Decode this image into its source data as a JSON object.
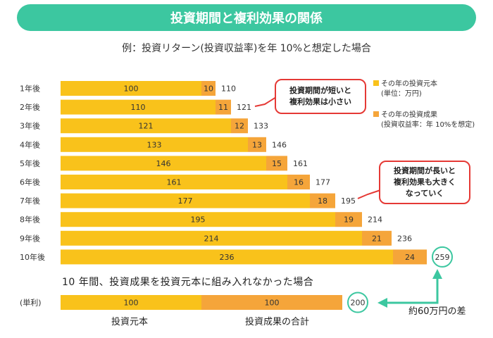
{
  "header": {
    "title": "投資期間と複利効果の関係",
    "subtitle": "例：投資リターン(投資収益率)を年 10%と想定した場合"
  },
  "legend": {
    "principal": "その年の投資元本",
    "principal_note": "(単位：万円)",
    "gain": "その年の投資成果",
    "gain_note": "(投資収益率：年 10%を想定)"
  },
  "callouts": {
    "short_line1": "投資期間が短いと",
    "short_line2": "複利効果は小さい",
    "long_line1": "投資期間が長いと",
    "long_line2": "複利効果も大きく",
    "long_line3": "なっていく"
  },
  "bottom": {
    "title": "10 年間、投資成果を投資元本に組み入れなかった場合",
    "row_label": "(単利)",
    "principal_label": "投資元本",
    "gains_label": "投資成果の合計",
    "diff_label": "約60万円の差"
  },
  "colors": {
    "banner": "#3cc7a0",
    "principal": "#f9c21b",
    "gain": "#f5a53a",
    "teal": "#3cc7a0",
    "callout_border": "#e53935"
  },
  "chart_data": [
    {
      "type": "bar",
      "stacked": true,
      "orientation": "horizontal",
      "categories": [
        "1年後",
        "2年後",
        "3年後",
        "4年後",
        "5年後",
        "6年後",
        "7年後",
        "8年後",
        "9年後",
        "10年後"
      ],
      "series": [
        {
          "name": "その年の投資元本",
          "values": [
            100,
            110,
            121,
            133,
            146,
            161,
            177,
            195,
            214,
            236
          ]
        },
        {
          "name": "その年の投資成果",
          "values": [
            10,
            11,
            12,
            13,
            15,
            16,
            18,
            19,
            21,
            24
          ]
        }
      ],
      "totals": [
        "110",
        "121",
        "133",
        "146",
        "161",
        "177",
        "195",
        "214",
        "236",
        "259"
      ],
      "xlim": [
        0,
        259
      ]
    },
    {
      "type": "bar",
      "stacked": true,
      "orientation": "horizontal",
      "categories": [
        "(単利)"
      ],
      "series": [
        {
          "name": "投資元本",
          "values": [
            100
          ]
        },
        {
          "name": "投資成果の合計",
          "values": [
            100
          ]
        }
      ],
      "totals": [
        "200"
      ]
    }
  ]
}
